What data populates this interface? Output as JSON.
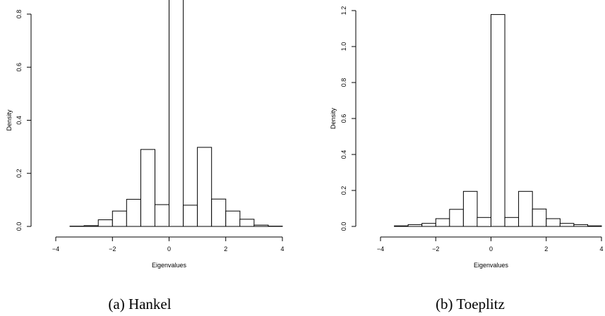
{
  "chart_data": [
    {
      "type": "bar",
      "caption": "(a) Hankel",
      "xlabel": "Eigenvalues",
      "ylabel": "Density",
      "xlim": [
        -4,
        4
      ],
      "ylim": [
        0,
        0.86
      ],
      "xticks": [
        -4,
        -2,
        0,
        2,
        4
      ],
      "xtick_labels": [
        "−4",
        "−2",
        "0",
        "2",
        "4"
      ],
      "yticks": [
        0,
        0.2,
        0.4,
        0.6,
        0.8
      ],
      "ytick_labels": [
        "0.0",
        "0.2",
        "0.4",
        "0.6",
        "0.8"
      ],
      "bin_edges": [
        -4,
        -3.5,
        -3,
        -2.5,
        -2,
        -1.5,
        -1,
        -0.5,
        0,
        0.5,
        1,
        1.5,
        2,
        2.5,
        3,
        3.5,
        4
      ],
      "values": [
        0,
        0.001,
        0.003,
        0.025,
        0.058,
        0.102,
        0.29,
        0.082,
        0.862,
        0.08,
        0.298,
        0.103,
        0.058,
        0.027,
        0.005,
        0.001
      ]
    },
    {
      "type": "bar",
      "caption": "(b) Toeplitz",
      "xlabel": "Eigenvalues",
      "ylabel": "Density",
      "xlim": [
        -4,
        4
      ],
      "ylim": [
        0,
        1.2
      ],
      "xticks": [
        -4,
        -2,
        0,
        2,
        4
      ],
      "xtick_labels": [
        "−4",
        "−2",
        "0",
        "2",
        "4"
      ],
      "yticks": [
        0,
        0.2,
        0.4,
        0.6,
        0.8,
        1.0,
        1.2
      ],
      "ytick_labels": [
        "0.0",
        "0.2",
        "0.4",
        "0.6",
        "0.8",
        "1.0",
        "1.2"
      ],
      "bin_edges": [
        -4,
        -3.5,
        -3,
        -2.5,
        -2,
        -1.5,
        -1,
        -0.5,
        0,
        0.5,
        1,
        1.5,
        2,
        2.5,
        3,
        3.5,
        4
      ],
      "values": [
        0,
        0.003,
        0.01,
        0.017,
        0.043,
        0.095,
        0.195,
        0.05,
        1.178,
        0.05,
        0.195,
        0.097,
        0.043,
        0.017,
        0.01,
        0.003
      ]
    }
  ]
}
